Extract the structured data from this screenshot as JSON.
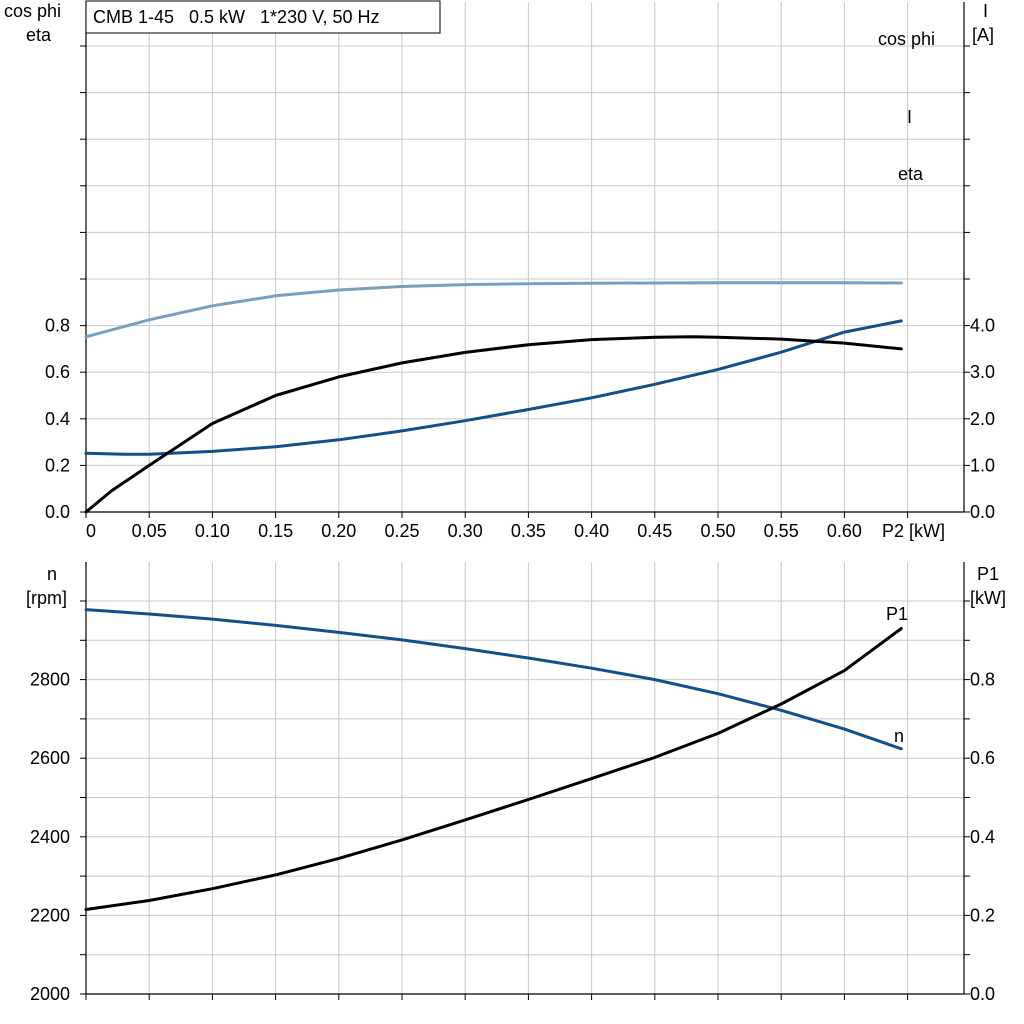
{
  "colors": {
    "cos_phi": "#7a9fc0",
    "current": "#134f8a",
    "eta": "#000000",
    "speed": "#134f8a",
    "p1": "#000000"
  },
  "chart_data": [
    {
      "type": "line",
      "title": "CMB 1-45   0.5 kW   1*230 V, 50 Hz",
      "xlabel": "P2 [kW]",
      "ylabel_left": [
        "cos phi",
        "eta"
      ],
      "ylabel_right": [
        "I",
        "[A]"
      ],
      "xlim": [
        0,
        0.7
      ],
      "ylim_left": [
        0,
        1.0
      ],
      "ylim_right": [
        0,
        5.0
      ],
      "x_ticks": [
        "0",
        "0.05",
        "0.10",
        "0.15",
        "0.20",
        "0.25",
        "0.30",
        "0.35",
        "0.40",
        "0.45",
        "0.50",
        "0.55",
        "0.60"
      ],
      "y_left_ticks": [
        "0.0",
        "0.2",
        "0.4",
        "0.6",
        "0.8"
      ],
      "y_right_ticks": [
        "0.0",
        "1.0",
        "2.0",
        "3.0",
        "4.0"
      ],
      "grid": true,
      "series": [
        {
          "name": "cos phi",
          "axis": "left",
          "color_key": "cos_phi",
          "x": [
            0,
            0.05,
            0.1,
            0.15,
            0.2,
            0.25,
            0.3,
            0.35,
            0.4,
            0.45,
            0.5,
            0.55,
            0.6,
            0.645
          ],
          "y": [
            0.752,
            0.825,
            0.885,
            0.928,
            0.953,
            0.968,
            0.976,
            0.98,
            0.982,
            0.983,
            0.984,
            0.984,
            0.984,
            0.983
          ]
        },
        {
          "name": "I",
          "axis": "right",
          "color_key": "current",
          "x": [
            0,
            0.03,
            0.05,
            0.1,
            0.15,
            0.2,
            0.25,
            0.3,
            0.35,
            0.4,
            0.45,
            0.5,
            0.55,
            0.6,
            0.645
          ],
          "y": [
            1.26,
            1.24,
            1.24,
            1.3,
            1.4,
            1.55,
            1.74,
            1.96,
            2.2,
            2.45,
            2.74,
            3.06,
            3.43,
            3.86,
            4.1
          ]
        },
        {
          "name": "eta",
          "axis": "left",
          "color_key": "eta",
          "x": [
            0,
            0.02,
            0.05,
            0.1,
            0.15,
            0.2,
            0.25,
            0.3,
            0.35,
            0.4,
            0.45,
            0.48,
            0.5,
            0.55,
            0.6,
            0.645
          ],
          "y": [
            0.0,
            0.09,
            0.2,
            0.38,
            0.5,
            0.58,
            0.64,
            0.685,
            0.718,
            0.74,
            0.75,
            0.752,
            0.75,
            0.742,
            0.725,
            0.7
          ]
        }
      ]
    },
    {
      "type": "line",
      "xlabel": "",
      "ylabel_left": [
        "n",
        "[rpm]"
      ],
      "ylabel_right": [
        "P1",
        "[kW]"
      ],
      "xlim": [
        0,
        0.7
      ],
      "ylim_left": [
        2000,
        2900
      ],
      "ylim_right": [
        0,
        0.9
      ],
      "y_left_ticks": [
        "2000",
        "2200",
        "2400",
        "2600",
        "2800"
      ],
      "y_right_ticks": [
        "0.0",
        "0.2",
        "0.4",
        "0.6",
        "0.8"
      ],
      "grid": true,
      "series": [
        {
          "name": "n",
          "axis": "left",
          "color_key": "speed",
          "x": [
            0,
            0.05,
            0.1,
            0.15,
            0.2,
            0.25,
            0.3,
            0.35,
            0.4,
            0.45,
            0.5,
            0.55,
            0.6,
            0.645
          ],
          "y": [
            2978,
            2967,
            2954,
            2938,
            2920,
            2901,
            2879,
            2855,
            2829,
            2800,
            2764,
            2722,
            2674,
            2624
          ]
        },
        {
          "name": "P1",
          "axis": "right",
          "color_key": "p1",
          "x": [
            0,
            0.05,
            0.1,
            0.15,
            0.2,
            0.25,
            0.3,
            0.35,
            0.4,
            0.45,
            0.5,
            0.55,
            0.6,
            0.645
          ],
          "y": [
            0.215,
            0.238,
            0.268,
            0.303,
            0.345,
            0.392,
            0.443,
            0.495,
            0.548,
            0.602,
            0.663,
            0.738,
            0.823,
            0.93
          ]
        }
      ]
    }
  ]
}
